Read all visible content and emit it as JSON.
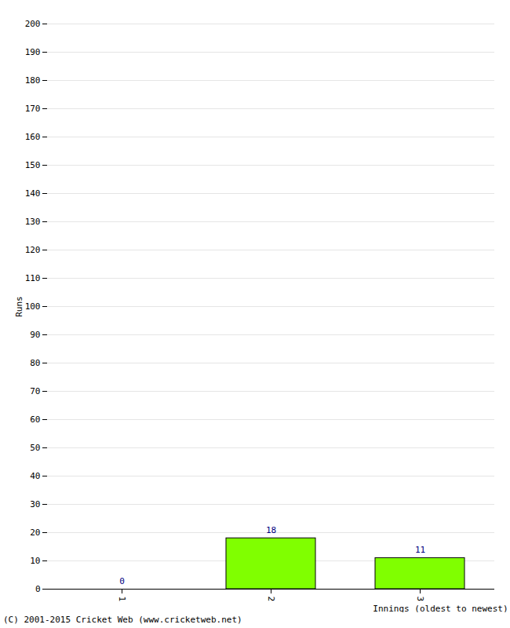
{
  "chart_data": {
    "type": "bar",
    "x_label": "Innings (oldest to newest)",
    "y_label": "Runs",
    "caption": "(C) 2001-2015 Cricket Web (www.cricketweb.net)",
    "categories": [
      "1",
      "2",
      "3"
    ],
    "values": [
      0,
      18,
      11
    ],
    "color": "#80ff00",
    "ylim": [
      0,
      200
    ],
    "yticks": [
      0,
      10,
      20,
      30,
      40,
      50,
      60,
      70,
      80,
      90,
      100,
      110,
      120,
      130,
      140,
      150,
      160,
      170,
      180,
      190,
      200
    ],
    "grid": true,
    "data_labels": true
  }
}
